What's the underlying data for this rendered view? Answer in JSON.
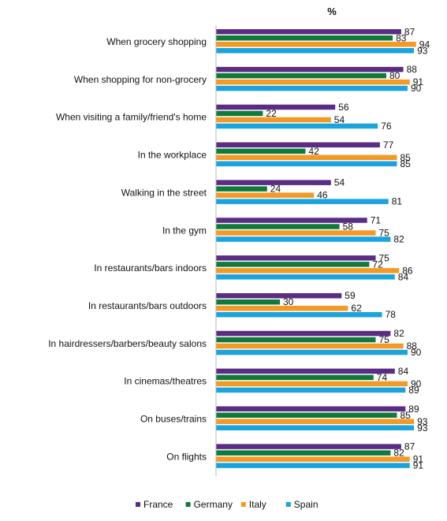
{
  "chart_data": {
    "type": "bar",
    "orientation": "horizontal",
    "title": "%",
    "categories": [
      "When grocery shopping",
      "When shopping for non-grocery",
      "When visiting a family/friend's home",
      "In the workplace",
      "Walking in the street",
      "In the gym",
      "In restaurants/bars indoors",
      "In restaurants/bars outdoors",
      "In hairdressers/barbers/beauty salons",
      "In cinemas/theatres",
      "On buses/trains",
      "On flights"
    ],
    "series": [
      {
        "name": "France",
        "color": "#5b2c83",
        "values": [
          87,
          88,
          56,
          77,
          54,
          71,
          75,
          59,
          82,
          84,
          89,
          87
        ]
      },
      {
        "name": "Germany",
        "color": "#0f7a3b",
        "values": [
          83,
          80,
          22,
          42,
          24,
          58,
          72,
          30,
          75,
          74,
          85,
          82
        ]
      },
      {
        "name": "Italy",
        "color": "#f39a26",
        "values": [
          94,
          91,
          54,
          85,
          46,
          75,
          86,
          62,
          88,
          90,
          93,
          91
        ]
      },
      {
        "name": "Spain",
        "color": "#1aa3dc",
        "values": [
          93,
          90,
          76,
          85,
          81,
          82,
          84,
          78,
          90,
          89,
          93,
          91
        ]
      }
    ],
    "xlim": [
      0,
      100
    ],
    "legend_position": "bottom",
    "grid": false
  }
}
